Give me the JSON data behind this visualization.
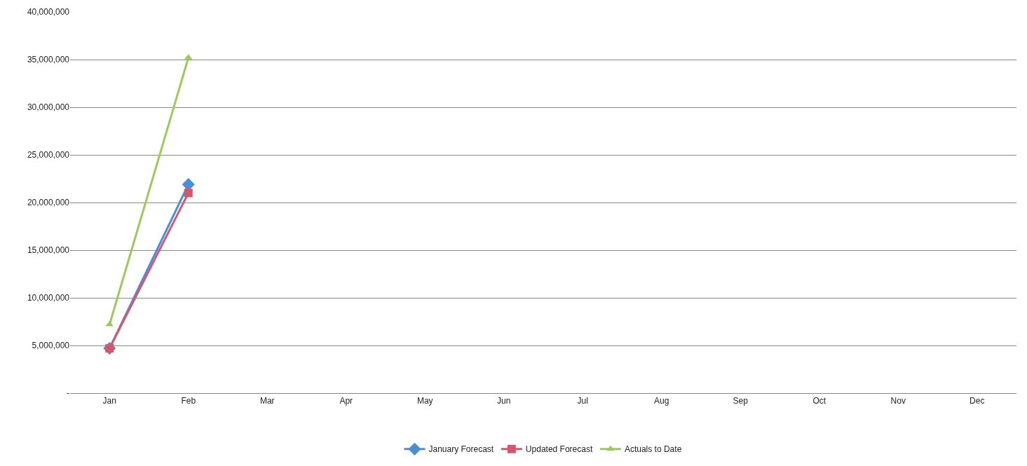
{
  "chart_data": {
    "type": "line",
    "categories": [
      "Jan",
      "Feb",
      "Mar",
      "Apr",
      "May",
      "Jun",
      "Jul",
      "Aug",
      "Sep",
      "Oct",
      "Nov",
      "Dec"
    ],
    "series": [
      {
        "name": "January Forecast",
        "color": "#4a8fd6",
        "marker": "diamond",
        "values": [
          4700000,
          21900000,
          null,
          null,
          null,
          null,
          null,
          null,
          null,
          null,
          null,
          null
        ]
      },
      {
        "name": "Updated Forecast",
        "color": "#d9566a",
        "marker": "square",
        "values": [
          4700000,
          21000000,
          null,
          null,
          null,
          null,
          null,
          null,
          null,
          null,
          null,
          null
        ]
      },
      {
        "name": "Actuals to Date",
        "color": "#9bc95a",
        "marker": "triangle",
        "values": [
          7200000,
          35200000,
          null,
          null,
          null,
          null,
          null,
          null,
          null,
          null,
          null,
          null
        ]
      }
    ],
    "ylim": [
      0,
      40000000
    ],
    "yticks": [
      {
        "value": 0,
        "label": "-"
      },
      {
        "value": 5000000,
        "label": "5,000,000"
      },
      {
        "value": 10000000,
        "label": "10,000,000"
      },
      {
        "value": 15000000,
        "label": "15,000,000"
      },
      {
        "value": 20000000,
        "label": "20,000,000"
      },
      {
        "value": 25000000,
        "label": "25,000,000"
      },
      {
        "value": 30000000,
        "label": "30,000,000"
      },
      {
        "value": 35000000,
        "label": "35,000,000"
      },
      {
        "value": 40000000,
        "label": "40,000,000"
      }
    ],
    "grid": "y",
    "legend": "bottom",
    "line_style": "solid"
  }
}
